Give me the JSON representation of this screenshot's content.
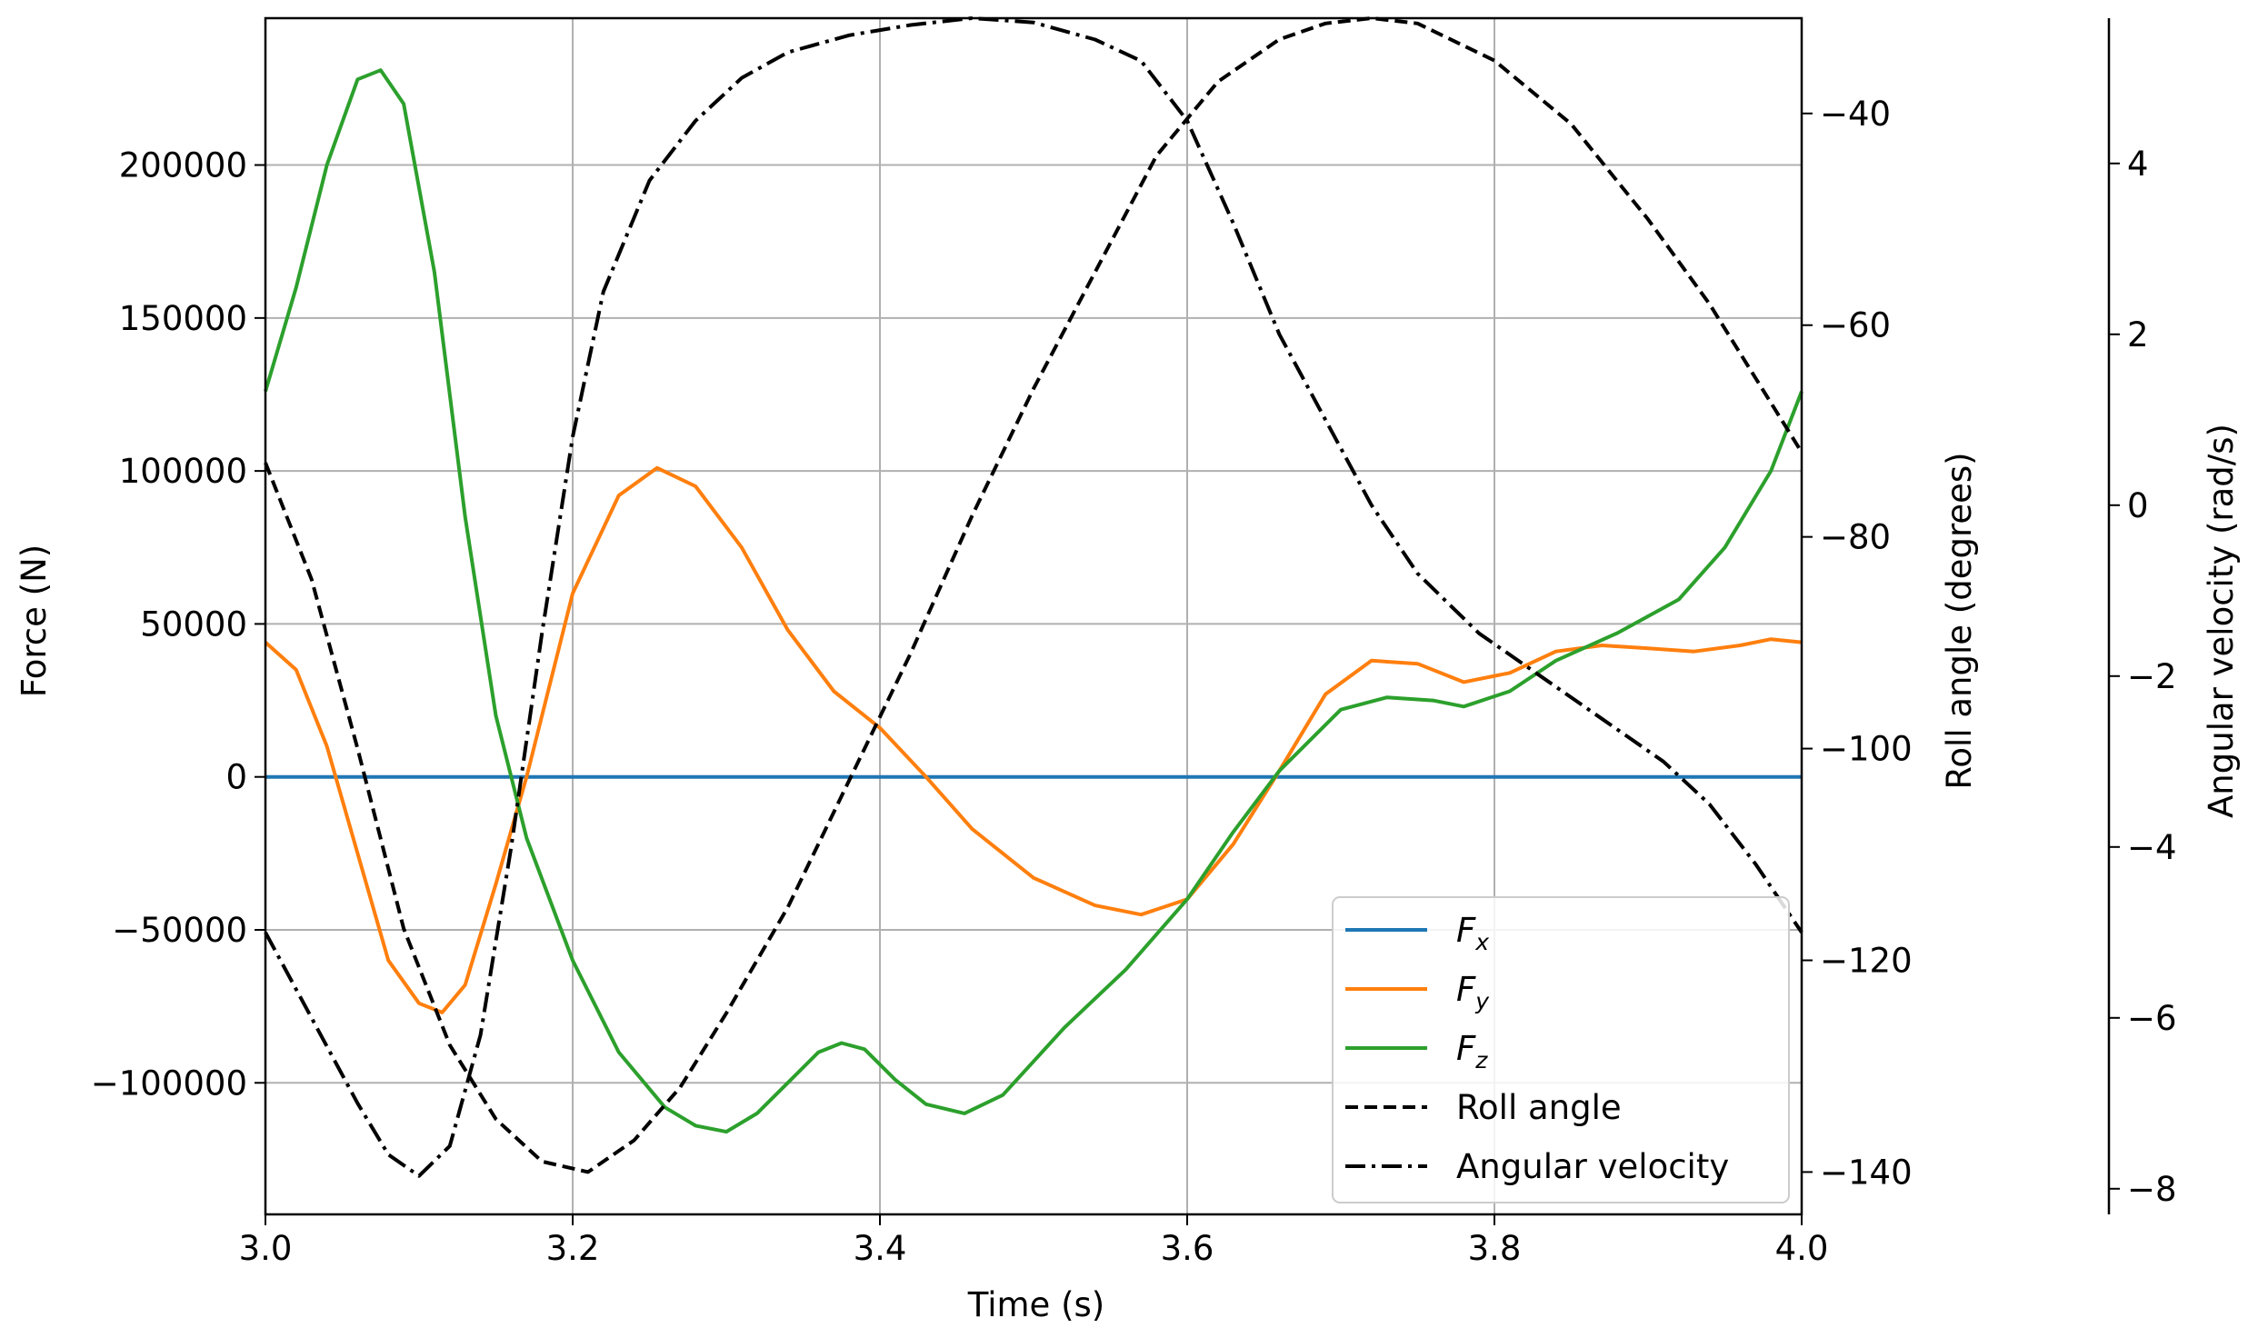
{
  "chart_data": {
    "type": "line",
    "xlabel": "Time (s)",
    "ylabel": "Force (N)",
    "y2label": "Roll angle (degrees)",
    "y3label": "Angular velocity (rad/s)",
    "xlim": [
      3.0,
      4.0
    ],
    "ylim": [
      -143000,
      248000
    ],
    "y2lim": [
      -144,
      -31
    ],
    "y3lim": [
      -8.3,
      5.7
    ],
    "xticks": [
      3.0,
      3.2,
      3.4,
      3.6,
      3.8,
      4.0
    ],
    "xtick_labels": [
      "3.0",
      "3.2",
      "3.4",
      "3.6",
      "3.8",
      "4.0"
    ],
    "yticks": [
      200000,
      150000,
      100000,
      50000,
      0,
      -50000,
      -100000
    ],
    "ytick_labels": [
      "200000",
      "150000",
      "100000",
      "50000",
      "0",
      "−50000",
      "−100000"
    ],
    "y2ticks": [
      -40,
      -60,
      -80,
      -100,
      -120,
      -140
    ],
    "y2tick_labels": [
      "−40",
      "−60",
      "−80",
      "−100",
      "−120",
      "−140"
    ],
    "y3ticks": [
      4,
      2,
      0,
      -2,
      -4,
      -6,
      -8
    ],
    "y3tick_labels": [
      "4",
      "2",
      "0",
      "−2",
      "−4",
      "−6",
      "−8"
    ],
    "grid": true,
    "legend_position": "lower-right",
    "series": [
      {
        "name": "F_x",
        "legend_main": "F",
        "legend_sub": "x",
        "axis": "left",
        "color": "#1f77b4",
        "style": "solid",
        "x": [
          3.0,
          4.0
        ],
        "y": [
          0,
          0
        ]
      },
      {
        "name": "F_y",
        "legend_main": "F",
        "legend_sub": "y",
        "axis": "left",
        "color": "#ff7f0e",
        "style": "solid",
        "x": [
          3.0,
          3.02,
          3.04,
          3.06,
          3.08,
          3.1,
          3.115,
          3.13,
          3.15,
          3.17,
          3.2,
          3.23,
          3.255,
          3.28,
          3.31,
          3.34,
          3.37,
          3.4,
          3.43,
          3.46,
          3.5,
          3.54,
          3.57,
          3.6,
          3.63,
          3.66,
          3.69,
          3.72,
          3.75,
          3.78,
          3.81,
          3.84,
          3.87,
          3.9,
          3.93,
          3.96,
          3.98,
          4.0
        ],
        "y": [
          44000,
          35000,
          10000,
          -25000,
          -60000,
          -74000,
          -77000,
          -68000,
          -35000,
          0,
          60000,
          92000,
          101000,
          95000,
          75000,
          48000,
          28000,
          16000,
          0,
          -17000,
          -33000,
          -42000,
          -45000,
          -40000,
          -22000,
          2000,
          27000,
          38000,
          37000,
          31000,
          34000,
          41000,
          43000,
          42000,
          41000,
          43000,
          45000,
          44000
        ]
      },
      {
        "name": "F_z",
        "legend_main": "F",
        "legend_sub": "z",
        "axis": "left",
        "color": "#2ca02c",
        "style": "solid",
        "x": [
          3.0,
          3.02,
          3.04,
          3.06,
          3.075,
          3.09,
          3.11,
          3.13,
          3.15,
          3.17,
          3.2,
          3.23,
          3.26,
          3.28,
          3.3,
          3.32,
          3.34,
          3.36,
          3.375,
          3.39,
          3.41,
          3.43,
          3.455,
          3.48,
          3.52,
          3.56,
          3.6,
          3.63,
          3.66,
          3.7,
          3.73,
          3.76,
          3.78,
          3.81,
          3.84,
          3.88,
          3.92,
          3.95,
          3.98,
          4.0
        ],
        "y": [
          126000,
          160000,
          200000,
          228000,
          231000,
          220000,
          165000,
          85000,
          20000,
          -20000,
          -60000,
          -90000,
          -108000,
          -114000,
          -116000,
          -110000,
          -100000,
          -90000,
          -87000,
          -89000,
          -99000,
          -107000,
          -110000,
          -104000,
          -82000,
          -63000,
          -40000,
          -18000,
          2000,
          22000,
          26000,
          25000,
          23000,
          28000,
          38000,
          47000,
          58000,
          75000,
          100000,
          126000
        ]
      },
      {
        "name": "Roll angle",
        "legend_label": "Roll angle",
        "axis": "right",
        "color": "#000000",
        "style": "dashed",
        "x": [
          3.0,
          3.03,
          3.06,
          3.09,
          3.12,
          3.15,
          3.18,
          3.21,
          3.24,
          3.27,
          3.3,
          3.34,
          3.38,
          3.42,
          3.46,
          3.5,
          3.54,
          3.58,
          3.62,
          3.66,
          3.69,
          3.72,
          3.75,
          3.8,
          3.85,
          3.9,
          3.94,
          3.97,
          4.0
        ],
        "y": [
          -73,
          -84,
          -100,
          -117,
          -128,
          -135,
          -139,
          -140,
          -137,
          -132,
          -125,
          -115,
          -103,
          -91,
          -78,
          -66,
          -55,
          -44,
          -37,
          -33,
          -31.5,
          -31,
          -31.5,
          -35,
          -41,
          -50,
          -58,
          -65,
          -72
        ]
      },
      {
        "name": "Angular velocity",
        "legend_label": "Angular velocity",
        "axis": "right2",
        "color": "#000000",
        "style": "dashdot",
        "x": [
          3.0,
          3.03,
          3.06,
          3.08,
          3.1,
          3.12,
          3.14,
          3.16,
          3.18,
          3.2,
          3.22,
          3.25,
          3.28,
          3.31,
          3.34,
          3.38,
          3.42,
          3.46,
          3.5,
          3.54,
          3.57,
          3.6,
          3.63,
          3.66,
          3.69,
          3.72,
          3.75,
          3.79,
          3.83,
          3.87,
          3.91,
          3.94,
          3.97,
          4.0
        ],
        "y": [
          -5.0,
          -6.0,
          -7.0,
          -7.6,
          -7.85,
          -7.5,
          -6.2,
          -4.0,
          -1.5,
          0.8,
          2.5,
          3.8,
          4.5,
          5.0,
          5.3,
          5.5,
          5.62,
          5.7,
          5.65,
          5.45,
          5.2,
          4.5,
          3.3,
          2.0,
          1.0,
          0.0,
          -0.8,
          -1.5,
          -2.0,
          -2.5,
          -3.0,
          -3.5,
          -4.2,
          -5.0
        ]
      }
    ]
  }
}
